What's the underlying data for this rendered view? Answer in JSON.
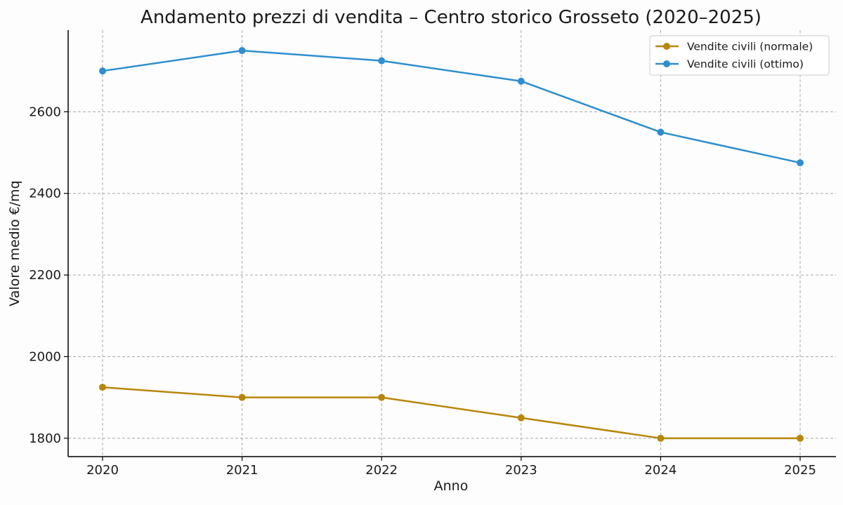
{
  "chart_data": {
    "type": "line",
    "title": "Andamento prezzi di vendita – Centro storico Grosseto (2020–2025)",
    "xlabel": "Anno",
    "ylabel": "Valore medio €/mq",
    "x": [
      "2020",
      "2021",
      "2022",
      "2023",
      "2024",
      "2025"
    ],
    "ylim": [
      1755,
      2800
    ],
    "yticks": [
      1800,
      2000,
      2200,
      2400,
      2600
    ],
    "grid": true,
    "legend_position": "top-right",
    "series": [
      {
        "name": "Vendite civili (normale)",
        "color": "#b8860b",
        "values": [
          1925,
          1900,
          1900,
          1850,
          1800,
          1800
        ]
      },
      {
        "name": "Vendite civili (ottimo)",
        "color": "#2e8ecf",
        "values": [
          2700,
          2750,
          2725,
          2675,
          2550,
          2475
        ]
      }
    ]
  }
}
